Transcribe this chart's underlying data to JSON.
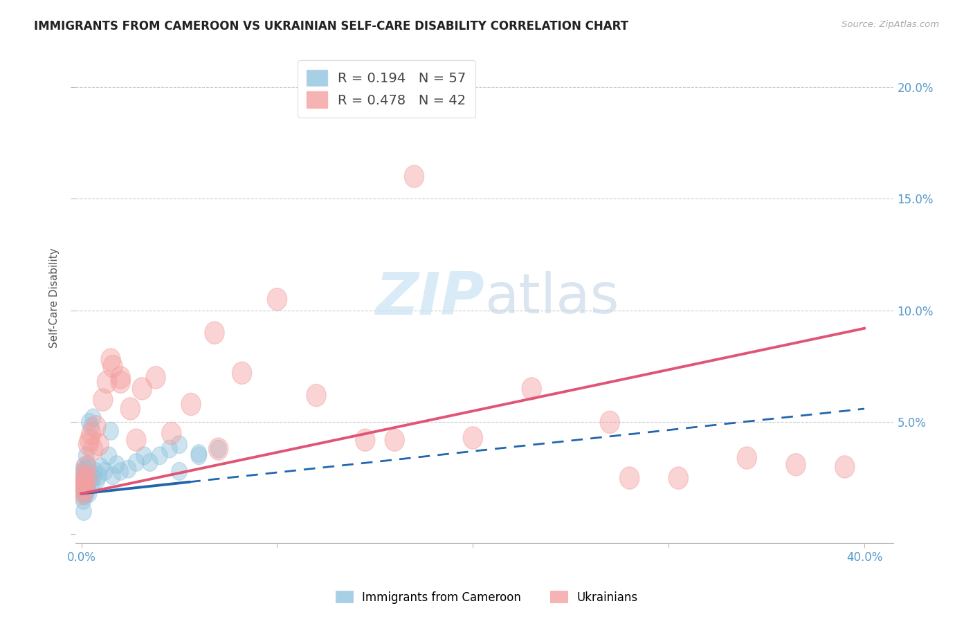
{
  "title": "IMMIGRANTS FROM CAMEROON VS UKRAINIAN SELF-CARE DISABILITY CORRELATION CHART",
  "source": "Source: ZipAtlas.com",
  "ylabel": "Self-Care Disability",
  "xlim": [
    -0.003,
    0.415
  ],
  "ylim": [
    -0.004,
    0.215
  ],
  "xticks": [
    0.0,
    0.1,
    0.2,
    0.3,
    0.4
  ],
  "yticks": [
    0.0,
    0.05,
    0.1,
    0.15,
    0.2
  ],
  "xticklabels": [
    "0.0%",
    "",
    "",
    "",
    "40.0%"
  ],
  "yticklabels_right": [
    "",
    "5.0%",
    "10.0%",
    "15.0%",
    "20.0%"
  ],
  "legend_r_blue": "0.194",
  "legend_n_blue": "57",
  "legend_r_pink": "0.478",
  "legend_n_pink": "42",
  "blue_color": "#92c5de",
  "pink_color": "#f4a0a0",
  "blue_line_color": "#2166ac",
  "pink_line_color": "#e05575",
  "watermark_color": "#cce5f5",
  "blue_scatter_x": [
    0.0005,
    0.0006,
    0.0007,
    0.0008,
    0.0009,
    0.001,
    0.0011,
    0.0012,
    0.0013,
    0.0014,
    0.0015,
    0.0016,
    0.0017,
    0.0018,
    0.0019,
    0.002,
    0.0021,
    0.0022,
    0.0023,
    0.0024,
    0.0025,
    0.0026,
    0.0028,
    0.003,
    0.0032,
    0.0034,
    0.0036,
    0.0038,
    0.004,
    0.0045,
    0.005,
    0.0055,
    0.006,
    0.007,
    0.008,
    0.009,
    0.01,
    0.012,
    0.014,
    0.016,
    0.018,
    0.02,
    0.024,
    0.028,
    0.032,
    0.004,
    0.006,
    0.015,
    0.035,
    0.04,
    0.045,
    0.05,
    0.06,
    0.07,
    0.05,
    0.0012,
    0.06
  ],
  "blue_scatter_y": [
    0.022,
    0.018,
    0.025,
    0.02,
    0.028,
    0.015,
    0.03,
    0.022,
    0.018,
    0.026,
    0.02,
    0.025,
    0.022,
    0.017,
    0.029,
    0.021,
    0.024,
    0.02,
    0.026,
    0.018,
    0.035,
    0.022,
    0.028,
    0.023,
    0.02,
    0.031,
    0.025,
    0.018,
    0.029,
    0.024,
    0.048,
    0.022,
    0.025,
    0.028,
    0.024,
    0.026,
    0.03,
    0.028,
    0.035,
    0.026,
    0.031,
    0.028,
    0.029,
    0.032,
    0.035,
    0.05,
    0.052,
    0.046,
    0.032,
    0.035,
    0.038,
    0.04,
    0.036,
    0.038,
    0.028,
    0.01,
    0.035
  ],
  "pink_scatter_x": [
    0.0005,
    0.0008,
    0.001,
    0.0013,
    0.0016,
    0.002,
    0.0025,
    0.003,
    0.0035,
    0.0042,
    0.005,
    0.006,
    0.0075,
    0.009,
    0.011,
    0.013,
    0.016,
    0.02,
    0.025,
    0.031,
    0.038,
    0.046,
    0.056,
    0.068,
    0.082,
    0.1,
    0.12,
    0.145,
    0.17,
    0.2,
    0.23,
    0.27,
    0.305,
    0.34,
    0.365,
    0.39,
    0.015,
    0.02,
    0.028,
    0.07,
    0.16,
    0.28
  ],
  "pink_scatter_y": [
    0.018,
    0.022,
    0.02,
    0.026,
    0.024,
    0.02,
    0.03,
    0.025,
    0.04,
    0.042,
    0.045,
    0.038,
    0.048,
    0.04,
    0.06,
    0.068,
    0.075,
    0.07,
    0.056,
    0.065,
    0.07,
    0.045,
    0.058,
    0.09,
    0.072,
    0.105,
    0.062,
    0.042,
    0.16,
    0.043,
    0.065,
    0.05,
    0.025,
    0.034,
    0.031,
    0.03,
    0.078,
    0.068,
    0.042,
    0.038,
    0.042,
    0.025
  ]
}
